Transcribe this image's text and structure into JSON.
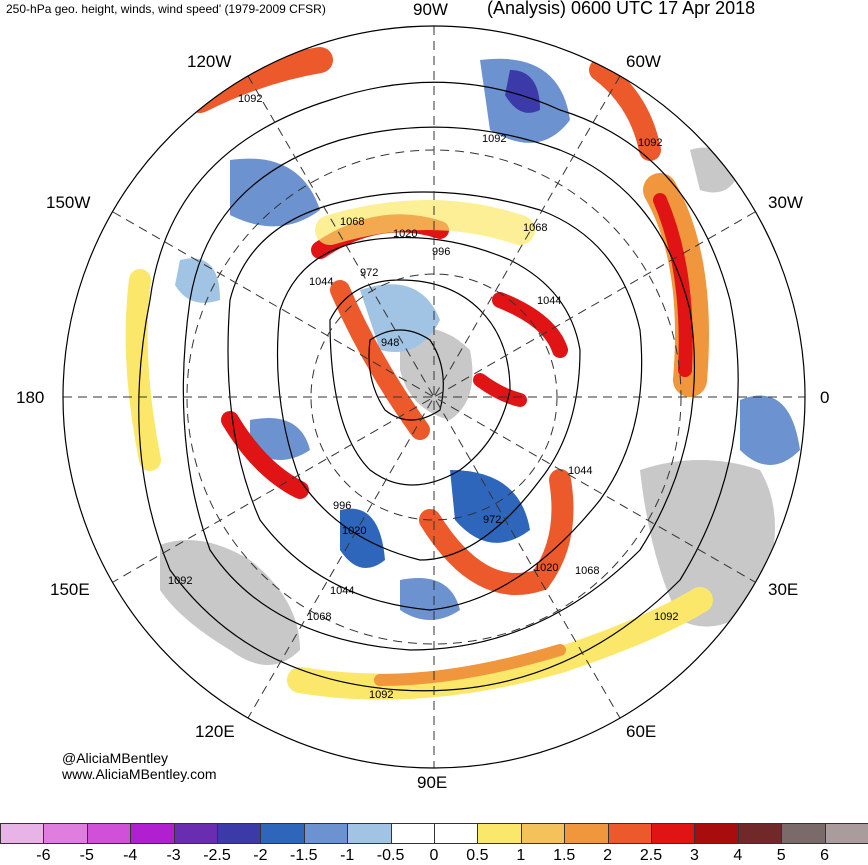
{
  "header": {
    "title_left": "250-hPa geo. height, winds, wind speed' (1979-2009 CFSR)",
    "title_right": "(Analysis) 0600 UTC 17 Apr 2018"
  },
  "longitude_labels": {
    "top": "90W",
    "upper_left": "120W",
    "upper_right": "60W",
    "left_upper": "150W",
    "right_upper": "30W",
    "left": "180",
    "right": "0",
    "left_lower": "150E",
    "right_lower": "30E",
    "lower_left": "120E",
    "lower_right": "60E",
    "bottom": "90E"
  },
  "contour_labels": [
    "1092",
    "1092",
    "1092",
    "1068",
    "1020",
    "996",
    "1068",
    "1044",
    "948",
    "972",
    "1044",
    "996",
    "1020",
    "972",
    "1044",
    "1020",
    "1068",
    "1092",
    "1044",
    "1068",
    "1092",
    "1092"
  ],
  "credit": {
    "handle": "@AliciaMBentley",
    "website": "www.AliciaMBentley.com"
  },
  "colorbar": {
    "colors": [
      "#e8b4e8",
      "#e07ee0",
      "#d050d8",
      "#b020d0",
      "#6a2cb0",
      "#3c3aa8",
      "#2e66bc",
      "#6c92d0",
      "#a2c4e4",
      "#ffffff",
      "#ffffff",
      "#fbe86a",
      "#f4c25a",
      "#f0963c",
      "#ec5a2c",
      "#e01414",
      "#a80c0c",
      "#702828",
      "#7a6a6a",
      "#aa9c9c"
    ],
    "ticks": [
      "-6",
      "-5",
      "-4",
      "-3",
      "-2.5",
      "-2",
      "-1.5",
      "-1",
      "-0.5",
      "0",
      "0.5",
      "1",
      "1.5",
      "2",
      "2.5",
      "3",
      "4",
      "5",
      "6"
    ]
  }
}
